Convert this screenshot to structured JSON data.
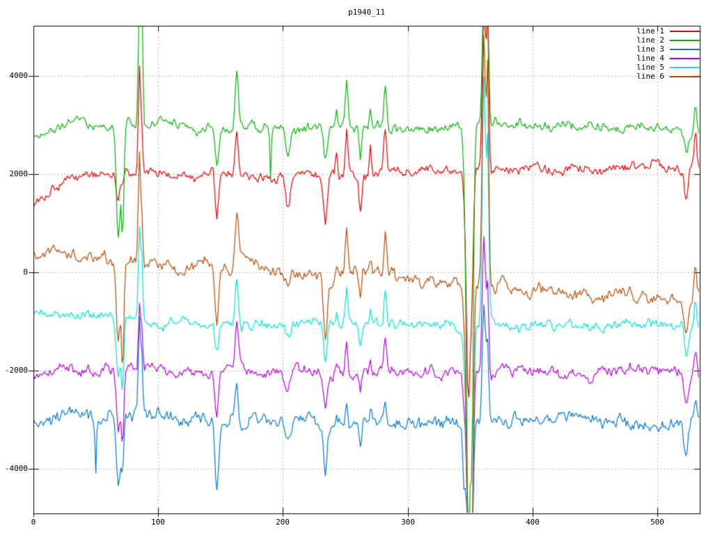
{
  "chart_data": {
    "type": "line",
    "title": "p1940_11",
    "xlabel": "",
    "ylabel": "",
    "xlim": [
      0,
      534
    ],
    "ylim": [
      -4908,
      5021
    ],
    "x_ticks": [
      0,
      100,
      200,
      300,
      400,
      500
    ],
    "y_ticks": [
      4000,
      2000,
      0,
      -2000,
      -4000
    ],
    "grid": true,
    "legend_position": "top-right-inside",
    "x_step": 1,
    "style": {
      "background": "#ffffff",
      "border_color": "#000000",
      "grid_color": "#9a9a9a",
      "text_color": "#000000"
    },
    "series": [
      {
        "name": "line 1",
        "color": "#e60000",
        "seed": 101,
        "noise": 150,
        "baseline": [
          [
            0,
            1350
          ],
          [
            25,
            1950
          ],
          [
            80,
            2000
          ],
          [
            200,
            2000
          ],
          [
            340,
            2050
          ],
          [
            430,
            2100
          ],
          [
            535,
            2150
          ]
        ]
      },
      {
        "name": "line 2",
        "color": "#00b400",
        "seed": 202,
        "noise": 145,
        "baseline": [
          [
            0,
            2800
          ],
          [
            40,
            3000
          ],
          [
            200,
            2950
          ],
          [
            300,
            2950
          ],
          [
            380,
            3000
          ],
          [
            470,
            2950
          ],
          [
            535,
            2900
          ]
        ]
      },
      {
        "name": "line 3",
        "color": "#0078d2",
        "seed": 303,
        "noise": 195,
        "baseline": [
          [
            0,
            -3100
          ],
          [
            30,
            -2950
          ],
          [
            150,
            -3000
          ],
          [
            230,
            -3100
          ],
          [
            340,
            -3050
          ],
          [
            430,
            -3000
          ],
          [
            480,
            -3150
          ],
          [
            535,
            -3050
          ]
        ]
      },
      {
        "name": "line 4",
        "color": "#b400dc",
        "seed": 404,
        "noise": 170,
        "baseline": [
          [
            0,
            -2100
          ],
          [
            25,
            -2000
          ],
          [
            200,
            -2050
          ],
          [
            340,
            -2000
          ],
          [
            430,
            -2050
          ],
          [
            535,
            -2050
          ]
        ]
      },
      {
        "name": "line 5",
        "color": "#00e0e0",
        "seed": 505,
        "noise": 150,
        "baseline": [
          [
            0,
            -800
          ],
          [
            60,
            -950
          ],
          [
            150,
            -1050
          ],
          [
            340,
            -1100
          ],
          [
            535,
            -1100
          ]
        ]
      },
      {
        "name": "line 6",
        "color": "#b84a00",
        "seed": 606,
        "noise": 195,
        "baseline": [
          [
            0,
            300
          ],
          [
            20,
            430
          ],
          [
            60,
            250
          ],
          [
            100,
            150
          ],
          [
            150,
            100
          ],
          [
            165,
            250
          ],
          [
            230,
            -50
          ],
          [
            280,
            0
          ],
          [
            300,
            -80
          ],
          [
            344,
            -150
          ],
          [
            368,
            -300
          ],
          [
            430,
            -380
          ],
          [
            480,
            -480
          ],
          [
            520,
            -620
          ],
          [
            535,
            -430
          ]
        ]
      }
    ],
    "events": [
      {
        "x": 50,
        "w": 0.8,
        "amps": [
          0,
          0,
          -1100,
          0,
          0,
          0
        ]
      },
      {
        "x": 68,
        "w": 2.2,
        "amps": [
          -500,
          -2300,
          -1500,
          -1200,
          -1300,
          -1800
        ]
      },
      {
        "x": 71.5,
        "w": 1.4,
        "amps": [
          -300,
          -2200,
          -900,
          -1500,
          -1400,
          -2100
        ]
      },
      {
        "x": 85,
        "w": 1.3,
        "amps": [
          2300,
          2600,
          1900,
          1300,
          2000,
          2300
        ]
      },
      {
        "x": 87,
        "w": 1.0,
        "amps": [
          800,
          2400,
          900,
          600,
          1200,
          900
        ]
      },
      {
        "x": 147,
        "w": 2.0,
        "amps": [
          -900,
          -800,
          -1300,
          -900,
          -600,
          -1200
        ]
      },
      {
        "x": 163,
        "w": 1.8,
        "amps": [
          1000,
          1100,
          900,
          900,
          950,
          1100
        ]
      },
      {
        "x": 190,
        "w": 0.7,
        "amps": [
          0,
          -1050,
          0,
          0,
          0,
          0
        ]
      },
      {
        "x": 204,
        "w": 2.5,
        "amps": [
          -600,
          -550,
          -300,
          -300,
          -300,
          -400
        ]
      },
      {
        "x": 234,
        "w": 2.0,
        "amps": [
          -900,
          -700,
          -1100,
          -700,
          -700,
          -1300
        ]
      },
      {
        "x": 243,
        "w": 1.2,
        "amps": [
          500,
          300,
          200,
          200,
          200,
          300
        ]
      },
      {
        "x": 251,
        "w": 1.5,
        "amps": [
          900,
          1050,
          500,
          700,
          700,
          800
        ]
      },
      {
        "x": 262,
        "w": 1.5,
        "amps": [
          -700,
          -600,
          -400,
          -400,
          -500,
          -500
        ]
      },
      {
        "x": 270,
        "w": 1.2,
        "amps": [
          700,
          300,
          200,
          300,
          300,
          300
        ]
      },
      {
        "x": 282,
        "w": 1.6,
        "amps": [
          900,
          800,
          500,
          600,
          700,
          800
        ]
      },
      {
        "x": 345,
        "w": 1.5,
        "amps": [
          -300,
          -400,
          -1300,
          -500,
          -400,
          -500
        ]
      },
      {
        "x": 348.5,
        "w": 2.2,
        "amps": [
          -4650,
          -8000,
          -2300,
          -3400,
          -4200,
          -5000
        ]
      },
      {
        "x": 351.5,
        "w": 1.6,
        "amps": [
          -2000,
          -5500,
          -2100,
          -3600,
          -4000,
          -4600
        ]
      },
      {
        "x": 361,
        "w": 1.8,
        "amps": [
          3400,
          2700,
          2400,
          2700,
          5100,
          5100
        ]
      },
      {
        "x": 364,
        "w": 1.3,
        "amps": [
          3100,
          2500,
          1500,
          1800,
          3500,
          4300
        ]
      },
      {
        "x": 523,
        "w": 2.2,
        "amps": [
          -600,
          -400,
          -600,
          -550,
          -600,
          -700
        ]
      },
      {
        "x": 530.5,
        "w": 1.5,
        "amps": [
          800,
          500,
          450,
          500,
          500,
          550
        ]
      }
    ]
  }
}
